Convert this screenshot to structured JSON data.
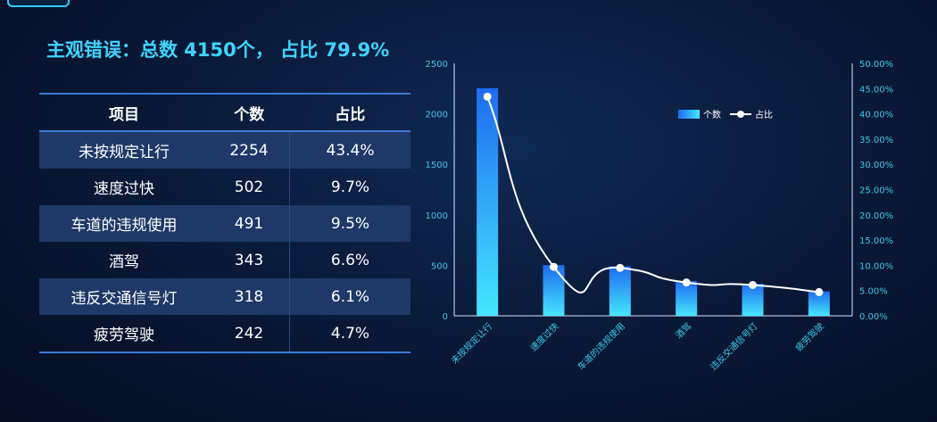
{
  "headline": "主观错误：总数 4150个， 占比 79.9%",
  "table": {
    "headers": [
      "项目",
      "个数",
      "占比"
    ],
    "rows": [
      {
        "name": "未按规定让行",
        "count": "2254",
        "pct": "43.4%"
      },
      {
        "name": "速度过快",
        "count": "502",
        "pct": "9.7%"
      },
      {
        "name": "车道的违规使用",
        "count": "491",
        "pct": "9.5%"
      },
      {
        "name": "酒驾",
        "count": "343",
        "pct": "6.6%"
      },
      {
        "name": "违反交通信号灯",
        "count": "318",
        "pct": "6.1%"
      },
      {
        "name": "疲劳驾驶",
        "count": "242",
        "pct": "4.7%"
      }
    ]
  },
  "chart_data": {
    "type": "bar",
    "categories": [
      "未按规定让行",
      "速度过快",
      "车道的违规使用",
      "酒驾",
      "违反交通信号灯",
      "疲劳驾驶"
    ],
    "series": [
      {
        "name": "个数",
        "type": "bar",
        "axis": "left",
        "values": [
          2254,
          502,
          491,
          343,
          318,
          242
        ]
      },
      {
        "name": "占比",
        "type": "line",
        "axis": "right",
        "values": [
          43.4,
          9.7,
          9.5,
          6.6,
          6.1,
          4.7
        ]
      }
    ],
    "ylim_left": [
      0,
      2500
    ],
    "ylim_right": [
      0,
      50
    ],
    "yticks_left": [
      "0",
      "500",
      "1000",
      "1500",
      "2000",
      "2500"
    ],
    "yticks_right": [
      "0.00%",
      "5.00%",
      "10.00%",
      "15.00%",
      "20.00%",
      "25.00%",
      "30.00%",
      "35.00%",
      "40.00%",
      "45.00%",
      "50.00%"
    ],
    "legend_position": "top-right",
    "grid": false,
    "colors": {
      "bar_top": "#1e6cf0",
      "bar_bottom": "#46e6ff",
      "line": "#ffffff",
      "axis_text": "#3fc9ea"
    }
  }
}
